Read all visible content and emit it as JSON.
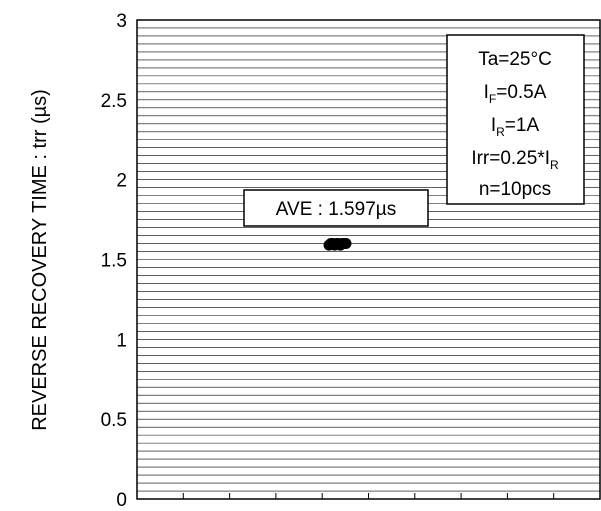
{
  "chart_data": {
    "type": "scatter",
    "title": "",
    "xlabel": "",
    "ylabel": "REVERSE RECOVERY TIME : trr (µs)",
    "ylim": [
      0,
      3
    ],
    "yticks": [
      "0",
      "0.5",
      "1",
      "1.5",
      "2",
      "2.5",
      "3"
    ],
    "grid": true,
    "series": [
      {
        "values": [
          1.59,
          1.6,
          1.6,
          1.59,
          1.6,
          1.6,
          1.59,
          1.6,
          1.6,
          1.6
        ]
      }
    ],
    "annotations": {
      "average": "AVE : 1.597µs",
      "conditions": [
        {
          "main": "Ta=25°C",
          "sub": "",
          "tail": ""
        },
        {
          "main": "I",
          "sub": "F",
          "tail": "=0.5A"
        },
        {
          "main": "I",
          "sub": "R",
          "tail": "=1A"
        },
        {
          "main": "Irr=0.25*I",
          "sub": "R",
          "tail": ""
        },
        {
          "main": "n=10pcs",
          "sub": "",
          "tail": ""
        }
      ]
    }
  }
}
